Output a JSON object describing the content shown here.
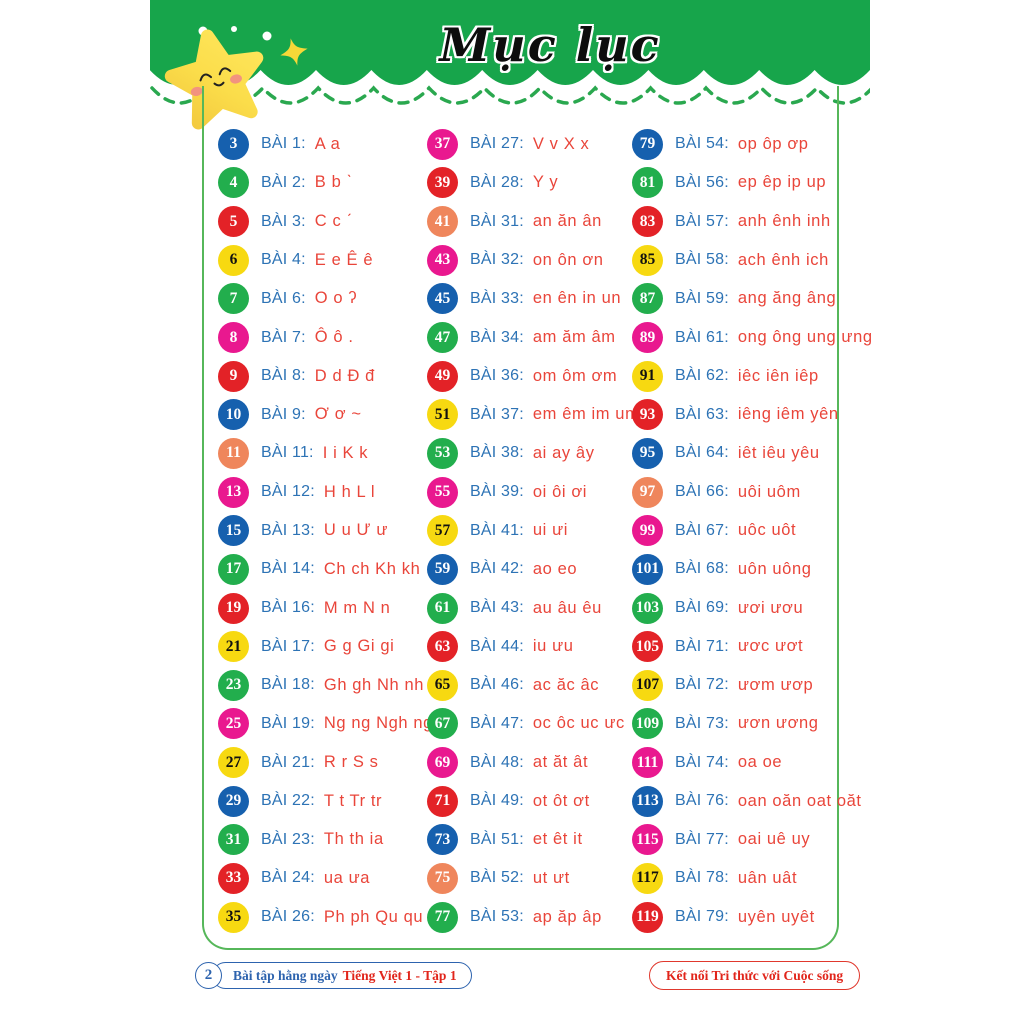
{
  "header": {
    "title": "Mục lục"
  },
  "colors": {
    "header_green": "#17a54b",
    "dash_green": "#2aa84f",
    "box_border": "#56b75a",
    "label_blue": "#2d73b5",
    "content_red": "#e9453a",
    "circle_colors": {
      "blue": "#1660ae",
      "green": "#22ae4d",
      "red": "#e32227",
      "yellow": "#f7d911",
      "magenta": "#e9188f",
      "orange": "#ef865c"
    },
    "circle_text_on_yellow": "#111111",
    "circle_text_default": "#ffffff"
  },
  "columns": [
    {
      "rows": [
        {
          "page": "3",
          "color": "blue",
          "label": "BÀI 1:",
          "content": "A a"
        },
        {
          "page": "4",
          "color": "green",
          "label": "BÀI 2:",
          "content": "B b ˋ"
        },
        {
          "page": "5",
          "color": "red",
          "label": "BÀI 3:",
          "content": "C c ˊ"
        },
        {
          "page": "6",
          "color": "yellow",
          "label": "BÀI 4:",
          "content": "E e Ê ê"
        },
        {
          "page": "7",
          "color": "green",
          "label": "BÀI 6:",
          "content": "O o ʔ"
        },
        {
          "page": "8",
          "color": "magenta",
          "label": "BÀI 7:",
          "content": "Ô ô ."
        },
        {
          "page": "9",
          "color": "red",
          "label": "BÀI 8:",
          "content": "D d Đ đ"
        },
        {
          "page": "10",
          "color": "blue",
          "label": "BÀI 9:",
          "content": "Ơ ơ ~"
        },
        {
          "page": "11",
          "color": "orange",
          "label": "BÀI 11:",
          "content": "I i  K k"
        },
        {
          "page": "13",
          "color": "magenta",
          "label": "BÀI 12:",
          "content": "H h  L l"
        },
        {
          "page": "15",
          "color": "blue",
          "label": "BÀI 13:",
          "content": "U u Ư ư"
        },
        {
          "page": "17",
          "color": "green",
          "label": "BÀI 14:",
          "content": "Ch ch Kh kh"
        },
        {
          "page": "19",
          "color": "red",
          "label": "BÀI 16:",
          "content": "M m N n"
        },
        {
          "page": "21",
          "color": "yellow",
          "label": "BÀI 17:",
          "content": "G g Gi gi"
        },
        {
          "page": "23",
          "color": "green",
          "label": "BÀI 18:",
          "content": "Gh gh Nh nh"
        },
        {
          "page": "25",
          "color": "magenta",
          "label": "BÀI 19:",
          "content": "Ng ng Ngh ngh"
        },
        {
          "page": "27",
          "color": "yellow",
          "label": "BÀI 21:",
          "content": "R r  S s"
        },
        {
          "page": "29",
          "color": "blue",
          "label": "BÀI 22:",
          "content": "T t  Tr tr"
        },
        {
          "page": "31",
          "color": "green",
          "label": "BÀI 23:",
          "content": "Th th ia"
        },
        {
          "page": "33",
          "color": "red",
          "label": "BÀI 24:",
          "content": "ua ưa"
        },
        {
          "page": "35",
          "color": "yellow",
          "label": "BÀI 26:",
          "content": "Ph ph Qu qu"
        }
      ]
    },
    {
      "rows": [
        {
          "page": "37",
          "color": "magenta",
          "label": "BÀI 27:",
          "content": "V v  X x"
        },
        {
          "page": "39",
          "color": "red",
          "label": "BÀI 28:",
          "content": "Y y"
        },
        {
          "page": "41",
          "color": "orange",
          "label": "BÀI 31:",
          "content": "an ăn ân"
        },
        {
          "page": "43",
          "color": "magenta",
          "label": "BÀI 32:",
          "content": "on ôn ơn"
        },
        {
          "page": "45",
          "color": "blue",
          "label": "BÀI 33:",
          "content": "en ên in un"
        },
        {
          "page": "47",
          "color": "green",
          "label": "BÀI 34:",
          "content": "am ăm âm"
        },
        {
          "page": "49",
          "color": "red",
          "label": "BÀI 36:",
          "content": "om ôm ơm"
        },
        {
          "page": "51",
          "color": "yellow",
          "label": "BÀI 37:",
          "content": "em êm im um"
        },
        {
          "page": "53",
          "color": "green",
          "label": "BÀI 38:",
          "content": "ai ay ây"
        },
        {
          "page": "55",
          "color": "magenta",
          "label": "BÀI 39:",
          "content": "oi ôi ơi"
        },
        {
          "page": "57",
          "color": "yellow",
          "label": "BÀI 41:",
          "content": "ui ưi"
        },
        {
          "page": "59",
          "color": "blue",
          "label": "BÀI 42:",
          "content": "ao eo"
        },
        {
          "page": "61",
          "color": "green",
          "label": "BÀI 43:",
          "content": "au âu êu"
        },
        {
          "page": "63",
          "color": "red",
          "label": "BÀI 44:",
          "content": "iu ưu"
        },
        {
          "page": "65",
          "color": "yellow",
          "label": "BÀI 46:",
          "content": "ac ăc âc"
        },
        {
          "page": "67",
          "color": "green",
          "label": "BÀI 47:",
          "content": "oc ôc uc ưc"
        },
        {
          "page": "69",
          "color": "magenta",
          "label": "BÀI 48:",
          "content": "at ăt ât"
        },
        {
          "page": "71",
          "color": "red",
          "label": "BÀI 49:",
          "content": "ot ôt ơt"
        },
        {
          "page": "73",
          "color": "blue",
          "label": "BÀI 51:",
          "content": "et êt it"
        },
        {
          "page": "75",
          "color": "orange",
          "label": "BÀI 52:",
          "content": "ut ưt"
        },
        {
          "page": "77",
          "color": "green",
          "label": "BÀI 53:",
          "content": "ap ăp âp"
        }
      ]
    },
    {
      "rows": [
        {
          "page": "79",
          "color": "blue",
          "label": "BÀI 54:",
          "content": "op ôp ơp"
        },
        {
          "page": "81",
          "color": "green",
          "label": "BÀI 56:",
          "content": "ep êp ip up"
        },
        {
          "page": "83",
          "color": "red",
          "label": "BÀI 57:",
          "content": "anh ênh inh"
        },
        {
          "page": "85",
          "color": "yellow",
          "label": "BÀI 58:",
          "content": "ach ênh ich"
        },
        {
          "page": "87",
          "color": "green",
          "label": "BÀI 59:",
          "content": "ang ăng âng"
        },
        {
          "page": "89",
          "color": "magenta",
          "label": "BÀI 61:",
          "content": "ong ông ung ưng"
        },
        {
          "page": "91",
          "color": "yellow",
          "label": "BÀI 62:",
          "content": "iêc iên iêp"
        },
        {
          "page": "93",
          "color": "red",
          "label": "BÀI 63:",
          "content": "iêng iêm yên"
        },
        {
          "page": "95",
          "color": "blue",
          "label": "BÀI 64:",
          "content": "iêt iêu yêu"
        },
        {
          "page": "97",
          "color": "orange",
          "label": "BÀI 66:",
          "content": "uôi uôm"
        },
        {
          "page": "99",
          "color": "magenta",
          "label": "BÀI 67:",
          "content": "uôc uôt"
        },
        {
          "page": "101",
          "color": "blue",
          "label": "BÀI 68:",
          "content": "uôn uông"
        },
        {
          "page": "103",
          "color": "green",
          "label": "BÀI 69:",
          "content": "ươi ươu"
        },
        {
          "page": "105",
          "color": "red",
          "label": "BÀI 71:",
          "content": "ươc ươt"
        },
        {
          "page": "107",
          "color": "yellow",
          "label": "BÀI 72:",
          "content": "ươm ươp"
        },
        {
          "page": "109",
          "color": "green",
          "label": "BÀI 73:",
          "content": "ươn ương"
        },
        {
          "page": "111",
          "color": "magenta",
          "label": "BÀI 74:",
          "content": "oa oe"
        },
        {
          "page": "113",
          "color": "blue",
          "label": "BÀI 76:",
          "content": "oan oăn oat oăt"
        },
        {
          "page": "115",
          "color": "magenta",
          "label": "BÀI 77:",
          "content": "oai uê uy"
        },
        {
          "page": "117",
          "color": "yellow",
          "label": "BÀI 78:",
          "content": "uân uât"
        },
        {
          "page": "119",
          "color": "red",
          "label": "BÀI 79:",
          "content": "uyên uyêt"
        }
      ]
    }
  ],
  "footer": {
    "page_number": "2",
    "left_text_blue": "Bài tập hằng ngày",
    "left_text_red": "Tiếng Việt 1 - Tập 1",
    "right_text": "Kết nối Tri thức với Cuộc sống"
  }
}
